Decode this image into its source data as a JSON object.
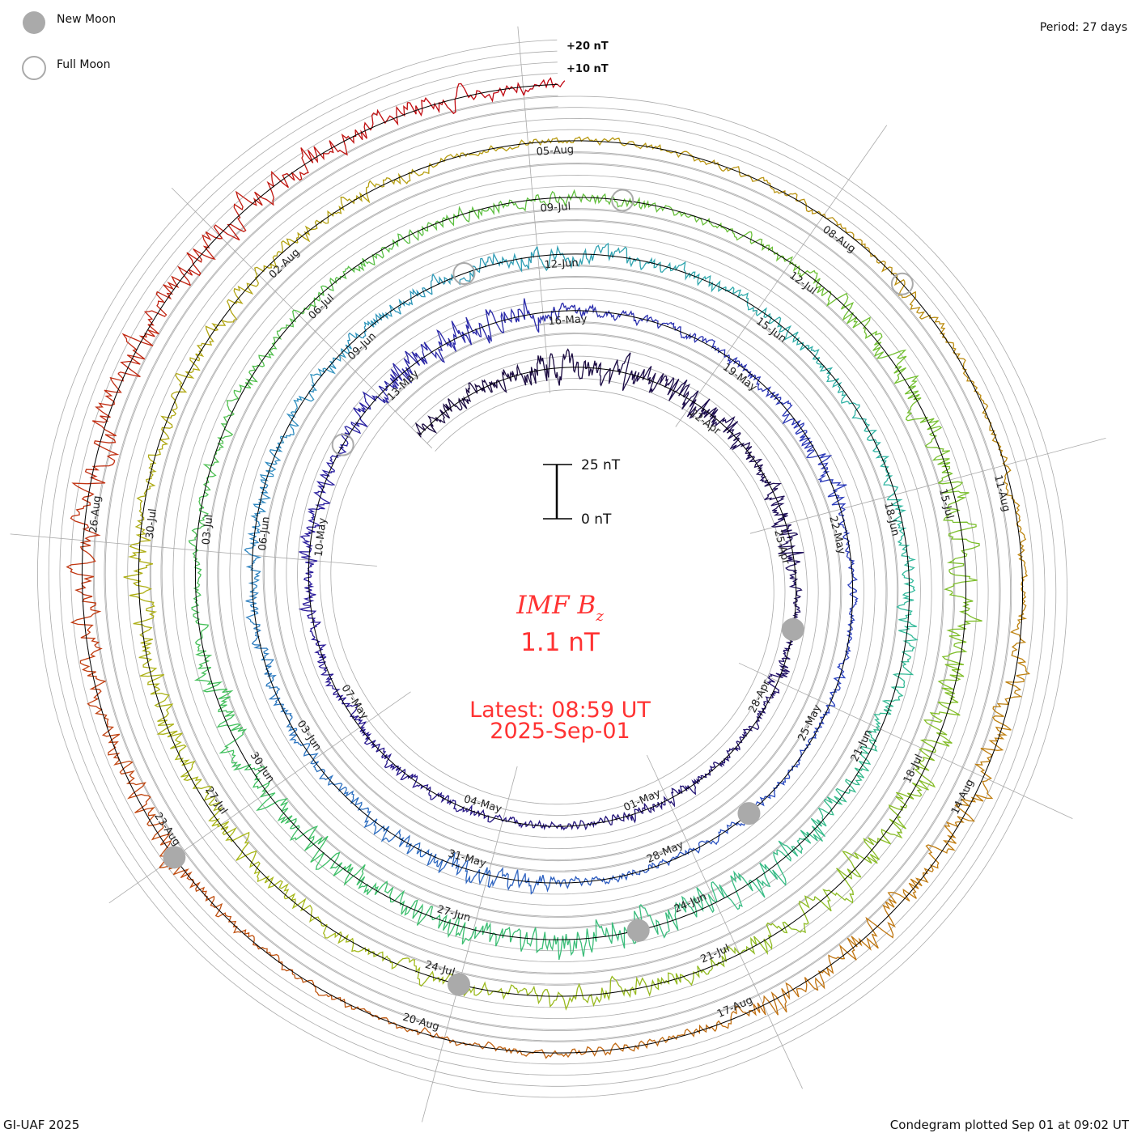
{
  "legend": {
    "new_moon": "New Moon",
    "full_moon": "Full Moon"
  },
  "period": "Period: 27 days",
  "footer": {
    "left": "GI-UAF 2025",
    "right": "Condegram plotted Sep 01 at 09:02 UT"
  },
  "chart_data": {
    "type": "line",
    "subtype": "spiral condegram",
    "title_main": "IMF B",
    "title_sub": "z",
    "current_value": "1.1 nT",
    "latest": "Latest: 08:59 UT",
    "latest_date": "2025-Sep-01",
    "period_days": 27,
    "start_day_offset": -3,
    "end_day_offset": 135.375,
    "reference_date": "19-Apr",
    "scale_bar": {
      "top": "25 nT",
      "bottom": "0 nT",
      "nT": 25
    },
    "ring_labels": [
      "+20 nT",
      "+10 nT"
    ],
    "ring_step_nT": 5,
    "date_label_step_days": 3,
    "date_label_first_day": 3,
    "date_labels": [
      "22-Apr",
      "25-Apr",
      "28-Apr",
      "01-May",
      "04-May",
      "07-May",
      "10-May",
      "13-May",
      "16-May",
      "19-May",
      "22-May",
      "25-May",
      "28-May",
      "31-May",
      "03-Jun",
      "06-Jun",
      "09-Jun",
      "12-Jun",
      "15-Jun",
      "18-Jun",
      "21-Jun",
      "24-Jun",
      "27-Jun",
      "30-Jun",
      "03-Jul",
      "06-Jul",
      "09-Jul",
      "12-Jul",
      "15-Jul",
      "18-Jul",
      "21-Jul",
      "24-Jul",
      "27-Jul",
      "30-Jul",
      "02-Aug",
      "05-Aug",
      "08-Aug",
      "11-Aug",
      "14-Aug",
      "17-Aug",
      "20-Aug",
      "23-Aug",
      "26-Aug"
    ],
    "new_moon_days": [
      8,
      38,
      67,
      96,
      126
    ],
    "full_moon_days": [
      23,
      53,
      82,
      112
    ],
    "color_stops": [
      [
        0,
        "#1a0a40"
      ],
      [
        20,
        "#2a1a9a"
      ],
      [
        35,
        "#2a40c0"
      ],
      [
        50,
        "#3090c0"
      ],
      [
        60,
        "#30b8a0"
      ],
      [
        72,
        "#40c060"
      ],
      [
        85,
        "#70c030"
      ],
      [
        98,
        "#a8b818"
      ],
      [
        108,
        "#b89a10"
      ],
      [
        118,
        "#c07a10"
      ],
      [
        126,
        "#c04a10"
      ],
      [
        135.4,
        "#c00010"
      ]
    ],
    "colors": {
      "text": "#ff3333",
      "grid": "#aaaaaa",
      "moon": "#aaaaaa"
    }
  }
}
